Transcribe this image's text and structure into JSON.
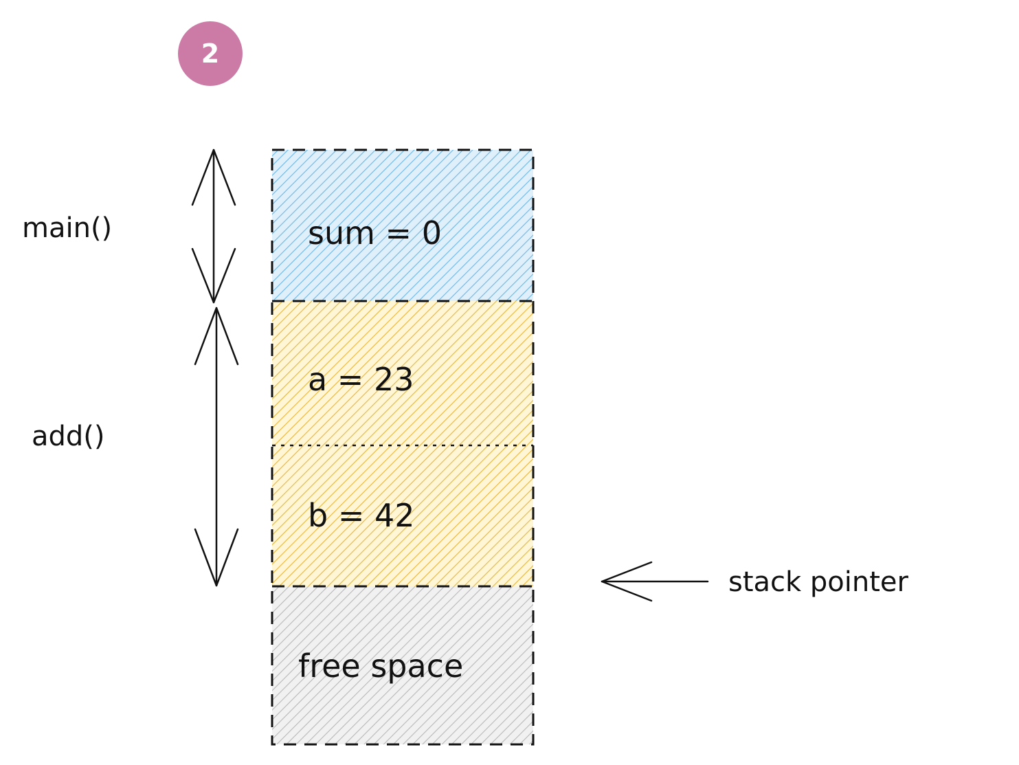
{
  "step": {
    "number": "2",
    "color": "#cc7aa6"
  },
  "frames": {
    "main": {
      "label": "main()"
    },
    "add": {
      "label": "add()"
    }
  },
  "stack": {
    "cells": [
      {
        "text": "sum = 0",
        "fill_color": "#a5d8ff",
        "hatch_color": "#4dabf7",
        "frame": "main"
      },
      {
        "text": "a = 23",
        "fill_color": "#ffec99",
        "hatch_color": "#f0b429",
        "frame": "add"
      },
      {
        "text": "b = 42",
        "fill_color": "#ffec99",
        "hatch_color": "#f0b429",
        "frame": "add"
      },
      {
        "text": "free space",
        "fill_color": "#e9ecef",
        "hatch_color": "#adb5bd",
        "frame": ""
      }
    ]
  },
  "pointer": {
    "label": "stack pointer"
  }
}
